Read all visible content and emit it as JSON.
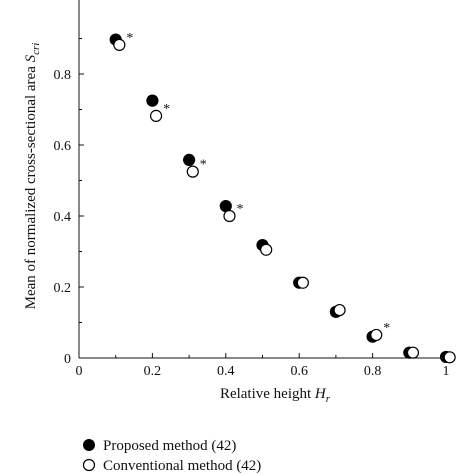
{
  "chart_data": {
    "type": "scatter",
    "xlabel": "Relative height",
    "xlabel_var": "H",
    "xlabel_sub": "r",
    "ylabel": "Mean of normalized cross-sectional area",
    "ylabel_var": "S",
    "ylabel_sub": "cri",
    "xlim": [
      0,
      1
    ],
    "ylim": [
      0,
      0.95
    ],
    "xticks": [
      0,
      0.2,
      0.4,
      0.6,
      0.8,
      1
    ],
    "xtick_labels": [
      "0",
      "0.2",
      "0.4",
      "0.6",
      "0.8",
      "1"
    ],
    "yticks": [
      0,
      0.2,
      0.4,
      0.6,
      0.8
    ],
    "ytick_labels": [
      "0",
      "0.2",
      "0.4",
      "0.6",
      "0.8"
    ],
    "grid": false,
    "legend_position": "bottom-left, below plot",
    "significance_marker": "*",
    "series": [
      {
        "name": "Proposed method (42)",
        "marker": "filled-circle",
        "color": "#000000",
        "x": [
          0.1,
          0.2,
          0.3,
          0.4,
          0.5,
          0.6,
          0.7,
          0.8,
          0.9,
          1.0
        ],
        "y": [
          0.897,
          0.725,
          0.558,
          0.428,
          0.318,
          0.212,
          0.13,
          0.06,
          0.015,
          0.003
        ]
      },
      {
        "name": "Conventional method (42)",
        "marker": "open-circle",
        "color": "#000000",
        "x": [
          0.11,
          0.21,
          0.31,
          0.41,
          0.51,
          0.61,
          0.71,
          0.81,
          0.91,
          1.01
        ],
        "y": [
          0.882,
          0.682,
          0.525,
          0.4,
          0.305,
          0.212,
          0.135,
          0.065,
          0.015,
          0.002
        ]
      }
    ],
    "significant_points": [
      0,
      1,
      2,
      3,
      7
    ]
  }
}
